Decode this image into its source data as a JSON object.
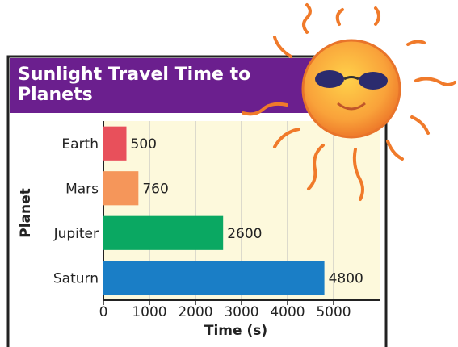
{
  "chart_data": {
    "type": "bar",
    "orientation": "horizontal",
    "title": "Sunlight Travel Time to Planets",
    "x_label": "Time (s)",
    "y_label": "Planet",
    "categories": [
      "Earth",
      "Mars",
      "Jupiter",
      "Saturn"
    ],
    "values": [
      500,
      760,
      2600,
      4800
    ],
    "colors": [
      "#e8505b",
      "#f5965a",
      "#0aa862",
      "#1a7ec6"
    ],
    "xlim": [
      0,
      6000
    ],
    "xticks": [
      0,
      1000,
      2000,
      3000,
      4000,
      5000
    ],
    "grid": true
  }
}
